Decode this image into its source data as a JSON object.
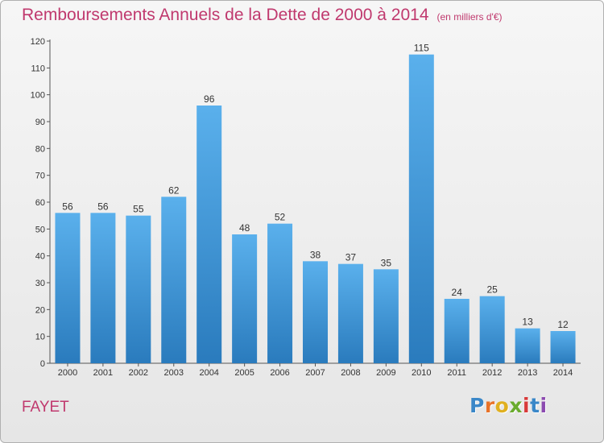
{
  "header": {
    "title": "Remboursements Annuels de la Dette de 2000 à 2014",
    "unit": "(en milliers d'€)"
  },
  "place_name": "FAYET",
  "logo": {
    "letters": [
      "P",
      "r",
      "o",
      "x",
      "i",
      "t",
      "i"
    ],
    "colors": [
      "#3a87c8",
      "#e8732a",
      "#e0b020",
      "#6aab2e",
      "#d83a3a",
      "#3a87c8",
      "#8c4ab0"
    ]
  },
  "colors": {
    "bar_top": "#5ab0ec",
    "bar_bottom": "#2a7bbd",
    "accent": "#c0396e"
  },
  "chart_data": {
    "type": "bar",
    "title": "Remboursements Annuels de la Dette de 2000 à 2014",
    "xlabel": "",
    "ylabel": "",
    "categories": [
      "2000",
      "2001",
      "2002",
      "2003",
      "2004",
      "2005",
      "2006",
      "2007",
      "2008",
      "2009",
      "2010",
      "2011",
      "2012",
      "2013",
      "2014"
    ],
    "values": [
      56,
      56,
      55,
      62,
      96,
      48,
      52,
      38,
      37,
      35,
      115,
      24,
      25,
      13,
      12
    ],
    "ylim": [
      0,
      120
    ],
    "yticks": [
      0,
      10,
      20,
      30,
      40,
      50,
      60,
      70,
      80,
      90,
      100,
      110,
      120
    ],
    "grid": false,
    "legend": "none"
  }
}
